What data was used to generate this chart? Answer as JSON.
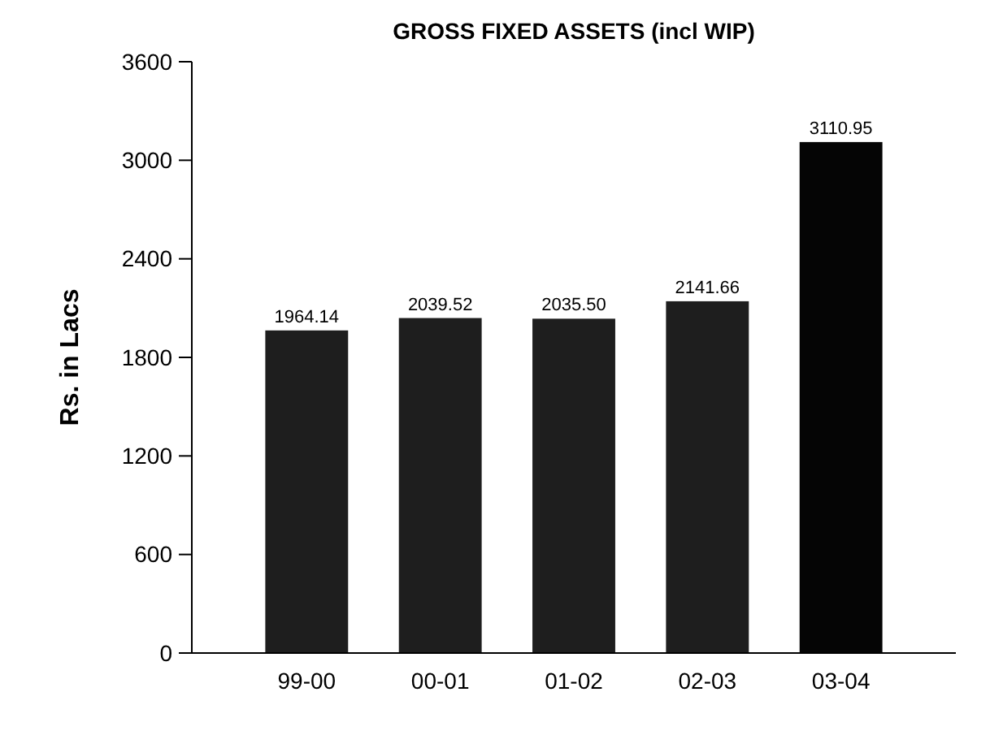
{
  "chart_data": {
    "type": "bar",
    "title": "GROSS FIXED ASSETS (incl WIP)",
    "ylabel": "Rs. in Lacs",
    "categories": [
      "99-00",
      "00-01",
      "01-02",
      "02-03",
      "03-04"
    ],
    "values": [
      1964.14,
      2039.52,
      2035.5,
      2141.66,
      3110.95
    ],
    "value_labels": [
      "1964.14",
      "2039.52",
      "2035.50",
      "2141.66",
      "3110.95"
    ],
    "colors": [
      "#1e1e1e",
      "#1e1e1e",
      "#1e1e1e",
      "#1e1e1e",
      "#050505"
    ],
    "ylim": [
      0,
      3600
    ],
    "yticks": [
      0,
      600,
      1200,
      1800,
      2400,
      3000,
      3600
    ],
    "grid": false
  }
}
